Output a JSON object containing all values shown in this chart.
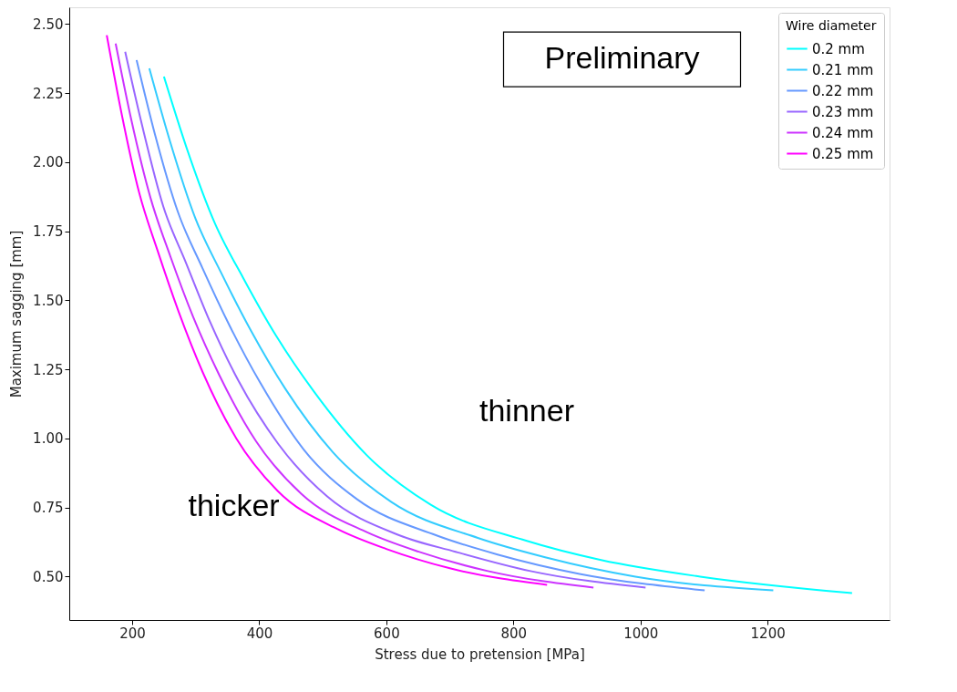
{
  "chart_data": {
    "type": "line",
    "xlabel": "Stress due to pretension [MPa]",
    "ylabel": "Maximum sagging [mm]",
    "legend_title": "Wire diameter",
    "legend": "top right",
    "grid": false,
    "marker": "none",
    "line_style": "solid",
    "xlim": [
      101,
      1392
    ],
    "ylim": [
      0.343,
      2.561
    ],
    "xticks": [
      200,
      400,
      600,
      800,
      {
        "value": 1000,
        "label": "1000"
      },
      {
        "value": 1200,
        "label": "1200"
      }
    ],
    "yticks": [
      {
        "value": 0.5,
        "label": "0.50"
      },
      {
        "value": 0.75,
        "label": "0.75"
      },
      {
        "value": 1.0,
        "label": "1.00"
      },
      {
        "value": 1.25,
        "label": "1.25"
      },
      {
        "value": 1.5,
        "label": "1.50"
      },
      {
        "value": 1.75,
        "label": "1.75"
      },
      {
        "value": 2.0,
        "label": "2.00"
      },
      {
        "value": 2.25,
        "label": "2.25"
      },
      {
        "value": 2.5,
        "label": "2.50"
      }
    ],
    "annotations": [
      "Preliminary",
      "thinner",
      "thicker"
    ],
    "series": [
      {
        "name": "0.2 mm",
        "color": "#00ffff",
        "x": [
          250,
          286,
          330,
          375,
          427,
          486,
          569,
          670,
          820,
          938,
          1094,
          1333
        ],
        "values": [
          2.31,
          2.05,
          1.78,
          1.58,
          1.37,
          1.17,
          0.94,
          0.76,
          0.63,
          0.56,
          0.5,
          0.44
        ]
      },
      {
        "name": "0.21 mm",
        "color": "#33ccff",
        "x": [
          227,
          259,
          299,
          340,
          387,
          441,
          516,
          608,
          744,
          850,
          992,
          1209
        ],
        "values": [
          2.34,
          2.08,
          1.8,
          1.6,
          1.39,
          1.18,
          0.95,
          0.77,
          0.64,
          0.57,
          0.5,
          0.45
        ]
      },
      {
        "name": "0.22 mm",
        "color": "#6699ff",
        "x": [
          207,
          236,
          272,
          310,
          353,
          402,
          470,
          554,
          678,
          775,
          904,
          1101
        ],
        "values": [
          2.37,
          2.1,
          1.82,
          1.62,
          1.41,
          1.2,
          0.96,
          0.78,
          0.65,
          0.58,
          0.51,
          0.45
        ]
      },
      {
        "name": "0.23 mm",
        "color": "#9966ff",
        "x": [
          189,
          216,
          249,
          284,
          323,
          367,
          430,
          507,
          620,
          709,
          827,
          1008
        ],
        "values": [
          2.4,
          2.13,
          1.84,
          1.64,
          1.42,
          1.21,
          0.98,
          0.79,
          0.65,
          0.59,
          0.52,
          0.46
        ]
      },
      {
        "name": "0.24 mm",
        "color": "#cc33ff",
        "x": [
          174,
          199,
          229,
          260,
          296,
          337,
          395,
          466,
          570,
          651,
          760,
          926
        ],
        "values": [
          2.43,
          2.15,
          1.87,
          1.66,
          1.44,
          1.23,
          0.99,
          0.8,
          0.66,
          0.59,
          0.52,
          0.46
        ]
      },
      {
        "name": "0.25 mm",
        "color": "#ff00ff",
        "x": [
          160,
          183,
          211,
          240,
          273,
          311,
          364,
          429,
          525,
          600,
          700,
          853
        ],
        "values": [
          2.46,
          2.18,
          1.89,
          1.68,
          1.46,
          1.24,
          1.0,
          0.81,
          0.67,
          0.6,
          0.53,
          0.47
        ]
      }
    ]
  }
}
